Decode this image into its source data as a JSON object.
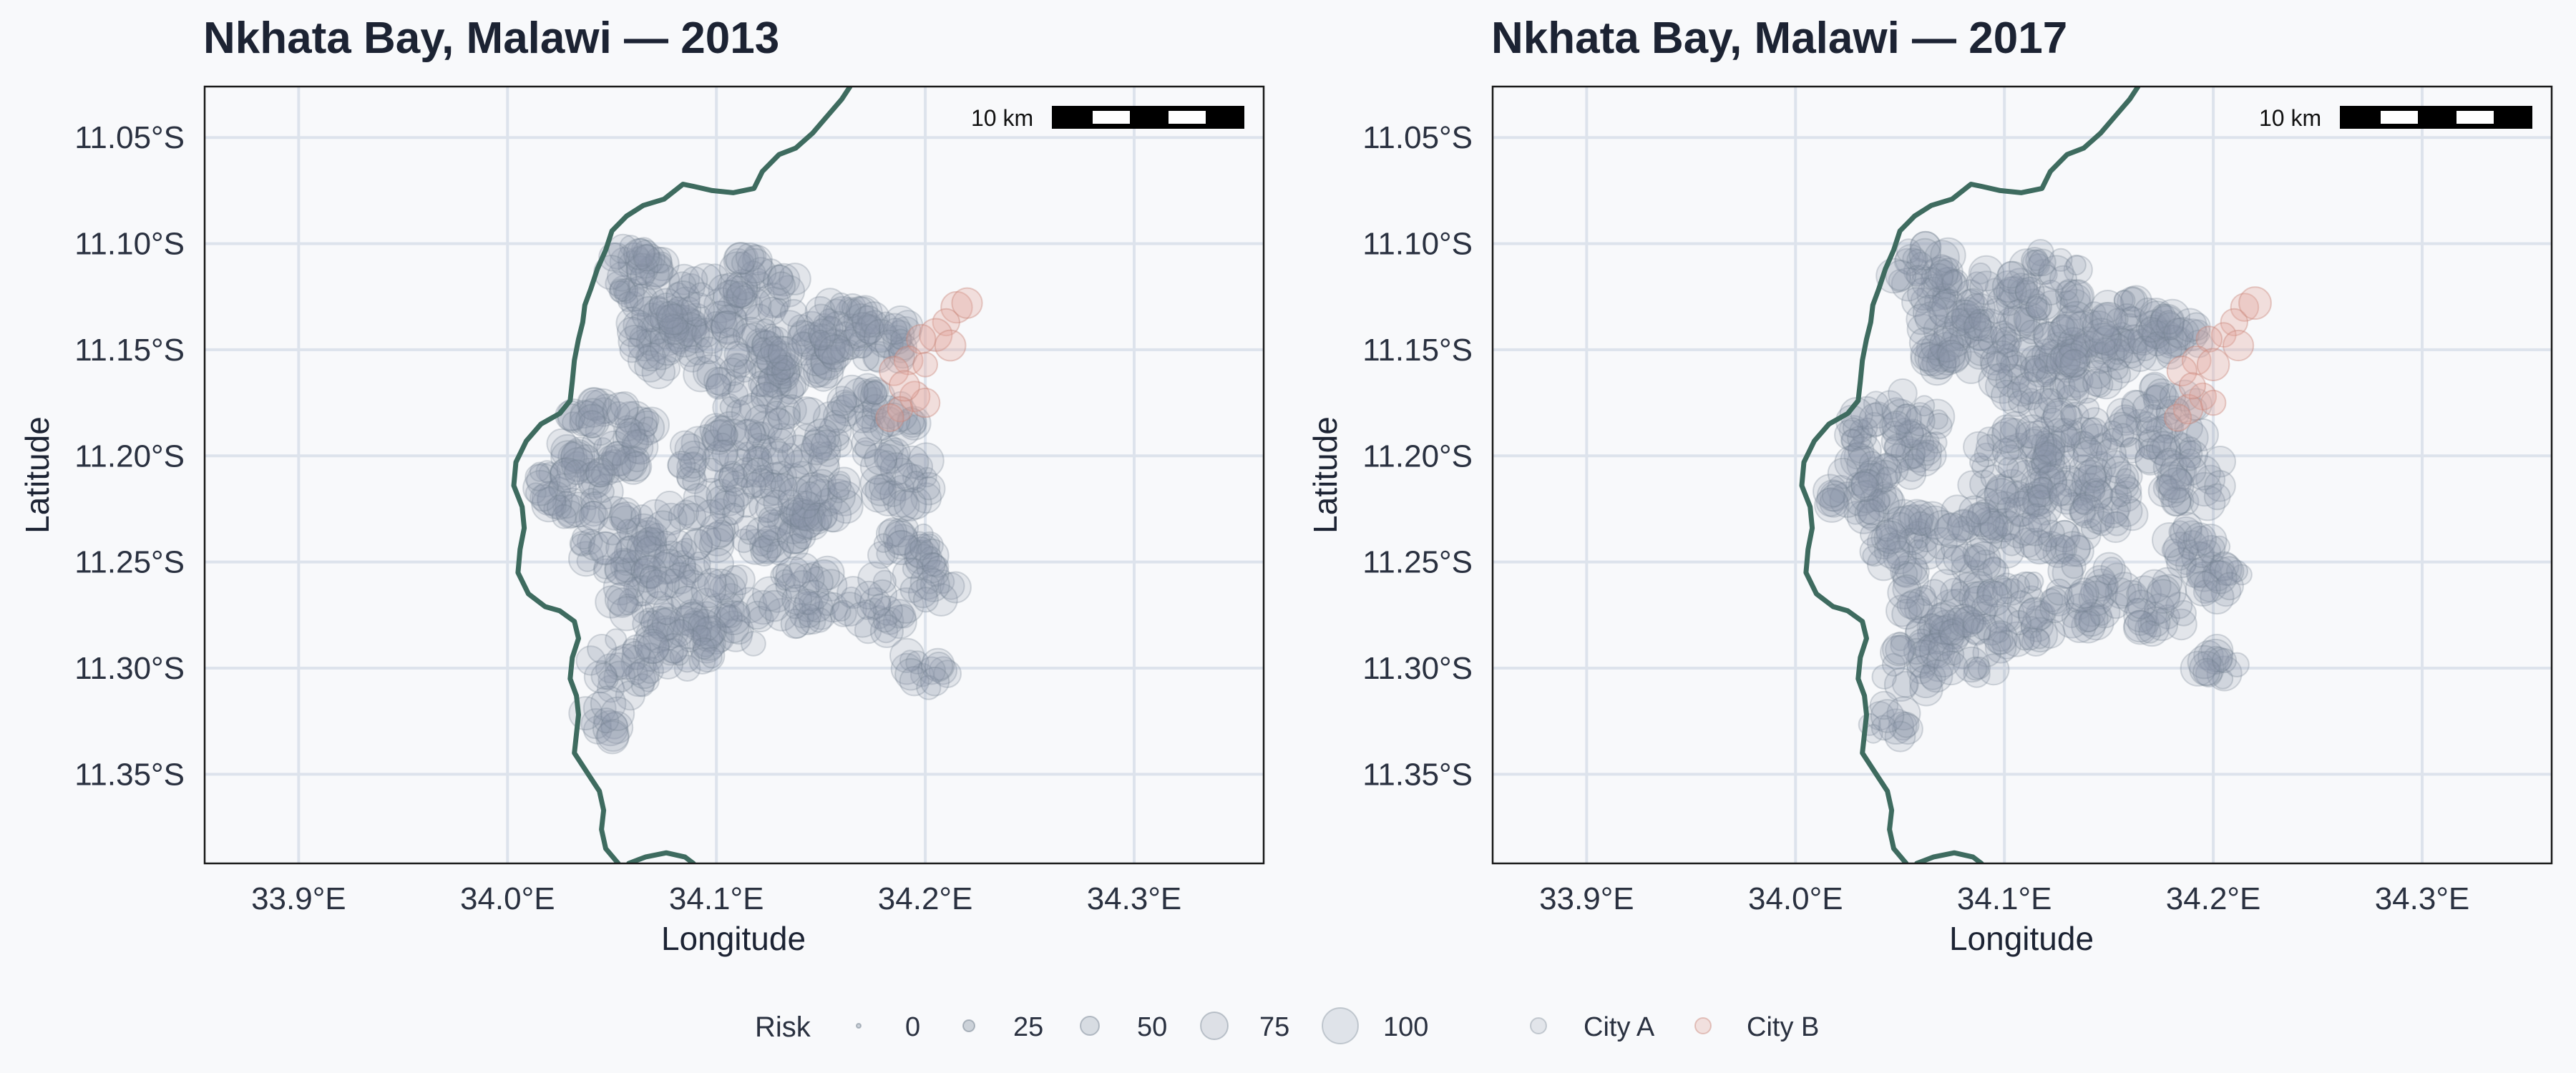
{
  "figure": {
    "panels": [
      {
        "title": "Nkhata Bay, Malawi — 2013",
        "year": 2013
      },
      {
        "title": "Nkhata Bay, Malawi — 2017",
        "year": 2017
      }
    ],
    "x_axis_label": "Longitude",
    "y_axis_label": "Latitude",
    "scale_bar_label": "10 km"
  },
  "chart_data": {
    "type": "scatter",
    "x_ticks": [
      "33.9°E",
      "34.0°E",
      "34.1°E",
      "34.2°E",
      "34.3°E"
    ],
    "x_tick_values": [
      33.9,
      34.0,
      34.1,
      34.2,
      34.3
    ],
    "y_ticks": [
      "11.05°S",
      "11.10°S",
      "11.15°S",
      "11.20°S",
      "11.25°S",
      "11.30°S",
      "11.35°S"
    ],
    "y_tick_values": [
      -11.05,
      -11.1,
      -11.15,
      -11.2,
      -11.25,
      -11.3,
      -11.35
    ],
    "xlim": [
      33.855,
      34.362
    ],
    "ylim": [
      -11.392,
      -11.026
    ],
    "grid": true,
    "legend": {
      "size_title": "Risk",
      "size_labels": [
        "0",
        "25",
        "50",
        "75",
        "100"
      ],
      "size_values": [
        0,
        25,
        50,
        75,
        100
      ],
      "color_entries": [
        {
          "label": "City A",
          "color": "#8a98a8"
        },
        {
          "label": "City B",
          "color": "#e2a59b"
        }
      ],
      "placement": "bottom"
    },
    "colors": {
      "city_a": "#8a98a8",
      "city_a_stroke": "#6f7d8c",
      "city_b": "#e2a59b",
      "city_b_stroke": "#c98477",
      "shoreline": "#3e6b5f",
      "grid": "#dde3ec",
      "panel_bg": "#f8f9fb",
      "frame": "#1a1a1a"
    },
    "shoreline": [
      [
        34.164,
        -11.026
      ],
      [
        34.16,
        -11.032
      ],
      [
        34.153,
        -11.04
      ],
      [
        34.146,
        -11.048
      ],
      [
        34.138,
        -11.055
      ],
      [
        34.13,
        -11.058
      ],
      [
        34.122,
        -11.066
      ],
      [
        34.118,
        -11.074
      ],
      [
        34.108,
        -11.076
      ],
      [
        34.098,
        -11.075
      ],
      [
        34.089,
        -11.073
      ],
      [
        34.084,
        -11.072
      ],
      [
        34.075,
        -11.079
      ],
      [
        34.065,
        -11.082
      ],
      [
        34.057,
        -11.087
      ],
      [
        34.05,
        -11.094
      ],
      [
        34.047,
        -11.103
      ],
      [
        34.043,
        -11.112
      ],
      [
        34.04,
        -11.121
      ],
      [
        34.037,
        -11.129
      ],
      [
        34.036,
        -11.137
      ],
      [
        34.034,
        -11.145
      ],
      [
        34.032,
        -11.155
      ],
      [
        34.031,
        -11.165
      ],
      [
        34.03,
        -11.174
      ],
      [
        34.025,
        -11.18
      ],
      [
        34.016,
        -11.185
      ],
      [
        34.009,
        -11.193
      ],
      [
        34.004,
        -11.203
      ],
      [
        34.003,
        -11.214
      ],
      [
        34.007,
        -11.224
      ],
      [
        34.008,
        -11.234
      ],
      [
        34.006,
        -11.244
      ],
      [
        34.005,
        -11.255
      ],
      [
        34.01,
        -11.265
      ],
      [
        34.018,
        -11.271
      ],
      [
        34.025,
        -11.273
      ],
      [
        34.032,
        -11.278
      ],
      [
        34.034,
        -11.286
      ],
      [
        34.031,
        -11.295
      ],
      [
        34.03,
        -11.305
      ],
      [
        34.033,
        -11.313
      ],
      [
        34.034,
        -11.322
      ],
      [
        34.033,
        -11.331
      ],
      [
        34.032,
        -11.34
      ],
      [
        34.038,
        -11.349
      ],
      [
        34.044,
        -11.358
      ],
      [
        34.046,
        -11.367
      ],
      [
        34.045,
        -11.376
      ],
      [
        34.047,
        -11.385
      ],
      [
        34.053,
        -11.392
      ]
    ],
    "shoreline_south": [
      [
        34.058,
        -11.392
      ],
      [
        34.066,
        -11.389
      ],
      [
        34.076,
        -11.387
      ],
      [
        34.085,
        -11.389
      ],
      [
        34.089,
        -11.392
      ]
    ]
  }
}
